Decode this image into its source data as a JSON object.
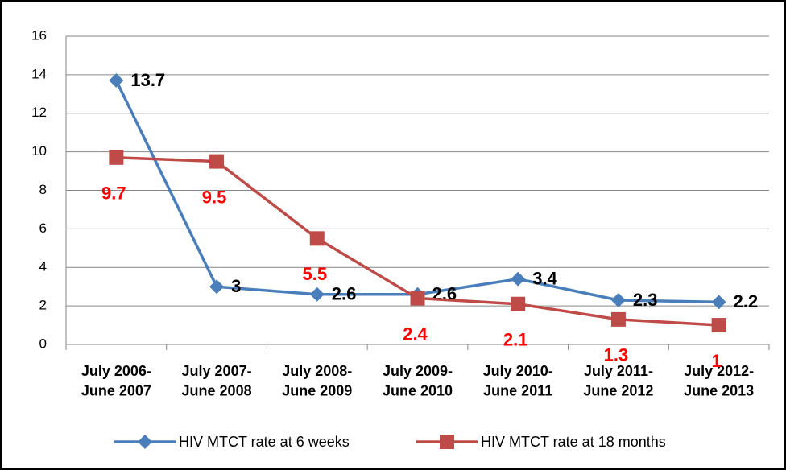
{
  "chart_data": {
    "type": "line",
    "categories": [
      "July 2006-\nJune 2007",
      "July 2007-\nJune 2008",
      "July 2008-\nJune 2009",
      "July 2009-\nJune 2010",
      "July 2010-\nJune 2011",
      "July 2011-\nJune 2012",
      "July 2012-\nJune 2013"
    ],
    "series": [
      {
        "name": "HIV MTCT rate at 6 weeks",
        "color": "#4a7ebb",
        "values": [
          13.7,
          3,
          2.6,
          2.6,
          3.4,
          2.3,
          2.2
        ],
        "label_color": "#000000"
      },
      {
        "name": "HIV MTCT rate at 18 months",
        "color": "#be4b48",
        "values": [
          9.7,
          9.5,
          5.5,
          2.4,
          2.1,
          1.3,
          1
        ],
        "label_color": "#ff0000"
      }
    ],
    "ylim": [
      0,
      16
    ],
    "yticks": [
      0,
      2,
      4,
      6,
      8,
      10,
      12,
      14,
      16
    ],
    "grid": true,
    "legend": "bottom"
  }
}
